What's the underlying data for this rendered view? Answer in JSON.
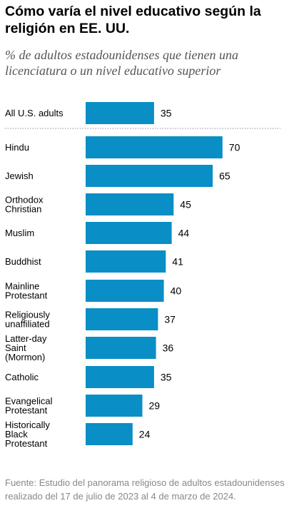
{
  "title": "Cómo varía el nivel educativo según la religión en EE. UU.",
  "subtitle": "% de adultos estadounidenses que tienen una licenciatura o un nivel educativo superior",
  "source": "Fuente: Estudio del panorama religioso de adultos estadounidenses realizado del 17 de julio de 2023 al 4 de marzo de 2024.",
  "colors": {
    "bar": "#0a8ec6",
    "separator": "#8a8aa0"
  },
  "chart_data": {
    "type": "bar",
    "orientation": "horizontal",
    "title": "Cómo varía el nivel educativo según la religión en EE. UU.",
    "subtitle": "% de adultos estadounidenses que tienen una licenciatura o un nivel educativo superior",
    "xlabel": "",
    "ylabel": "",
    "xlim": [
      0,
      100
    ],
    "grid": false,
    "categories": [
      "All U.S. adults",
      "Hindu",
      "Jewish",
      "Orthodox Christian",
      "Muslim",
      "Buddhist",
      "Mainline Protestant",
      "Religiously unaffiliated",
      "Latter-day Saint (Mormon)",
      "Catholic",
      "Evangelical Protestant",
      "Historically Black Protestant"
    ],
    "category_lines": [
      [
        "All U.S. adults"
      ],
      [
        "Hindu"
      ],
      [
        "Jewish"
      ],
      [
        "Orthodox",
        "Christian"
      ],
      [
        "Muslim"
      ],
      [
        "Buddhist"
      ],
      [
        "Mainline",
        "Protestant"
      ],
      [
        "Religiously",
        "unaffiliated"
      ],
      [
        "Latter-day",
        "Saint",
        "(Mormon)"
      ],
      [
        "Catholic"
      ],
      [
        "Evangelical",
        "Protestant"
      ],
      [
        "Historically",
        "Black",
        "Protestant"
      ]
    ],
    "values": [
      35,
      70,
      65,
      45,
      44,
      41,
      40,
      37,
      36,
      35,
      29,
      24
    ]
  }
}
